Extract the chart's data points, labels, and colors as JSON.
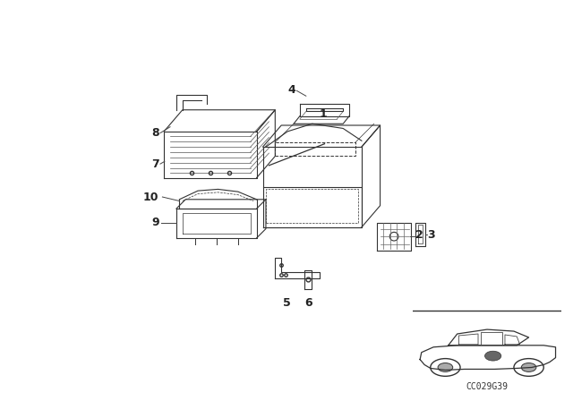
{
  "background_color": "#ffffff",
  "figsize": [
    6.4,
    4.48
  ],
  "dpi": 100,
  "diagram_code_text": "CC029G39"
}
